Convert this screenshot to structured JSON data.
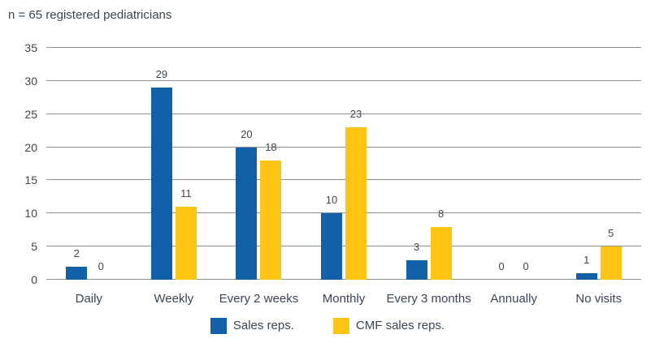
{
  "title": "n = 65 registered pediatricians",
  "colors": {
    "series1": "#1160a8",
    "series2": "#fdc413",
    "gridline": "#8f9294",
    "text": "#3a4553"
  },
  "chart_data": {
    "type": "bar",
    "title": "n = 65 registered pediatricians",
    "categories": [
      "Daily",
      "Weekly",
      "Every 2 weeks",
      "Monthly",
      "Every 3 months",
      "Annually",
      "No visits"
    ],
    "series": [
      {
        "name": "Sales reps.",
        "color_key": "series1",
        "values": [
          2,
          29,
          20,
          10,
          3,
          0,
          1
        ]
      },
      {
        "name": "CMF sales reps.",
        "color_key": "series2",
        "values": [
          0,
          11,
          18,
          23,
          8,
          0,
          5
        ]
      }
    ],
    "xlabel": "",
    "ylabel": "",
    "ylim": [
      0,
      35
    ],
    "yticks": [
      0,
      5,
      10,
      15,
      20,
      25,
      30,
      35
    ],
    "grid": true,
    "data_labels": true,
    "legend_position": "bottom"
  }
}
